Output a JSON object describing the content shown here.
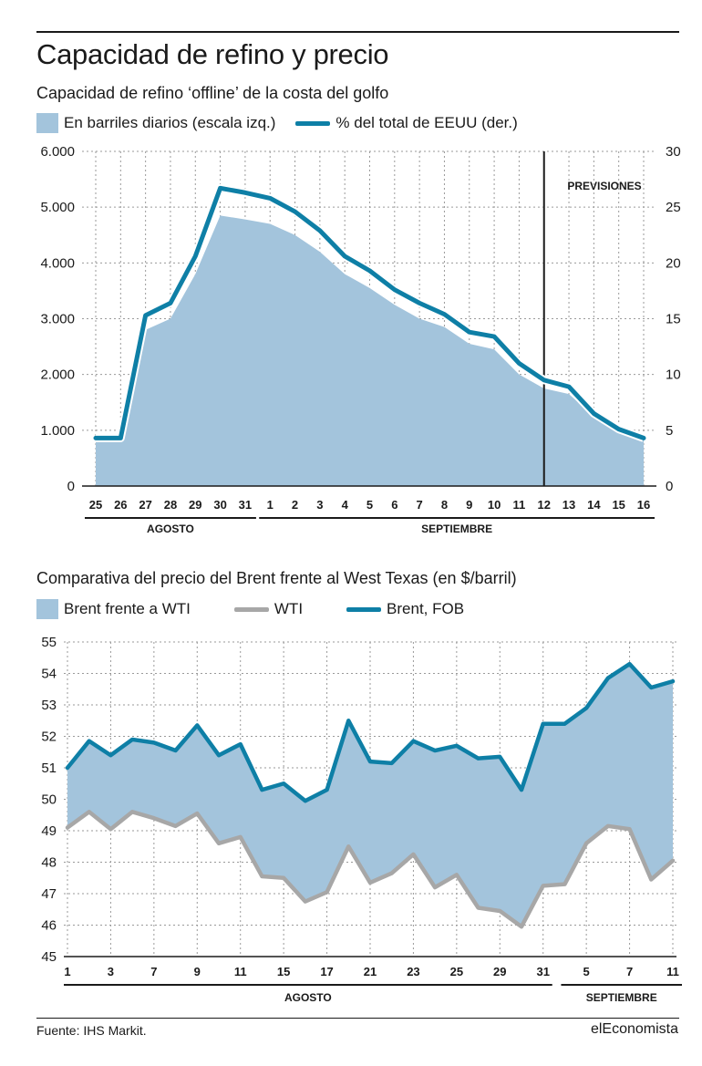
{
  "header": {
    "title": "Capacidad de refino y precio"
  },
  "chart1": {
    "subtitle": "Capacidad de refino ‘offline’ de la costa del golfo",
    "legend": {
      "area": "En barriles diarios (escala izq.)",
      "line": "% del total de EEUU (der.)"
    }
  },
  "chart2": {
    "subtitle": "Comparativa del precio del Brent frente al West Texas (en $/barril)",
    "legend": {
      "area": "Brent frente a WTI",
      "wti": "WTI",
      "brent": "Brent, FOB"
    }
  },
  "footer": {
    "source": "Fuente: IHS Markit.",
    "brand": "elEconomista"
  },
  "colors": {
    "area": "#a3c4dc",
    "brent_line": "#0e7fa6",
    "wti_line": "#a7a7a7",
    "grid": "#9a9a9a",
    "text": "#1a1a1a"
  },
  "chart_data": [
    {
      "type": "area",
      "categories": [
        "25",
        "26",
        "27",
        "28",
        "29",
        "30",
        "31",
        "1",
        "2",
        "3",
        "4",
        "5",
        "6",
        "7",
        "8",
        "9",
        "10",
        "11",
        "12",
        "13",
        "14",
        "15",
        "16"
      ],
      "group_labels": [
        {
          "label": "AGOSTO",
          "from": 0,
          "to": 6
        },
        {
          "label": "SEPTIEMBRE",
          "from": 7,
          "to": 22
        }
      ],
      "series": [
        {
          "name": "En barriles diarios (escala izq.)",
          "axis": "left",
          "chart": "area",
          "values": [
            850,
            850,
            2800,
            3000,
            3800,
            4850,
            4780,
            4700,
            4500,
            4200,
            3800,
            3550,
            3250,
            3000,
            2850,
            2550,
            2450,
            2000,
            1750,
            1650,
            1250,
            1000,
            850
          ]
        },
        {
          "name": "% del total de EEUU (der.)",
          "axis": "right",
          "chart": "line",
          "values": [
            4.3,
            4.3,
            15.3,
            16.4,
            20.6,
            26.7,
            26.3,
            25.8,
            24.6,
            22.9,
            20.6,
            19.3,
            17.6,
            16.4,
            15.4,
            13.8,
            13.4,
            11.0,
            9.5,
            8.9,
            6.5,
            5.1,
            4.3
          ]
        }
      ],
      "yleft": {
        "ylim": [
          0,
          6000
        ],
        "ticks": [
          "0",
          "1.000",
          "2.000",
          "3.000",
          "4.000",
          "5.000",
          "6.000"
        ]
      },
      "yright": {
        "ylim": [
          0,
          30
        ],
        "ticks": [
          "0",
          "5",
          "10",
          "15",
          "20",
          "25",
          "30"
        ]
      },
      "forecast": {
        "label": "PREVISIONES",
        "from_index": 18
      },
      "grid": true
    },
    {
      "type": "line",
      "series": [
        {
          "name": "Brent, FOB",
          "values": [
            51.0,
            51.85,
            51.4,
            51.9,
            51.8,
            51.55,
            52.35,
            51.4,
            51.75,
            50.3,
            50.5,
            49.95,
            50.3,
            52.5,
            51.2,
            51.15,
            51.85,
            51.55,
            51.7,
            51.3,
            51.35,
            50.3,
            52.4,
            52.4,
            52.9,
            53.85,
            54.3,
            53.55,
            53.75
          ]
        },
        {
          "name": "WTI",
          "values": [
            49.1,
            49.6,
            49.05,
            49.6,
            49.4,
            49.15,
            49.55,
            48.6,
            48.8,
            47.55,
            47.5,
            46.75,
            47.05,
            48.5,
            47.35,
            47.65,
            48.25,
            47.2,
            47.6,
            46.55,
            46.45,
            45.95,
            47.25,
            47.3,
            48.6,
            49.15,
            49.05,
            47.45,
            48.05
          ]
        }
      ],
      "x_tick_labels": [
        {
          "label": "1",
          "index": 0
        },
        {
          "label": "3",
          "index": 2
        },
        {
          "label": "7",
          "index": 4
        },
        {
          "label": "9",
          "index": 6
        },
        {
          "label": "11",
          "index": 8
        },
        {
          "label": "15",
          "index": 10
        },
        {
          "label": "17",
          "index": 12
        },
        {
          "label": "21",
          "index": 14
        },
        {
          "label": "23",
          "index": 16
        },
        {
          "label": "25",
          "index": 18
        },
        {
          "label": "29",
          "index": 20
        },
        {
          "label": "31",
          "index": 22
        },
        {
          "label": "5",
          "index": 24
        },
        {
          "label": "7",
          "index": 26
        },
        {
          "label": "11",
          "index": 28
        }
      ],
      "group_labels": [
        {
          "label": "AGOSTO",
          "from": 0,
          "to": 22
        },
        {
          "label": "SEPTIEMBRE",
          "from": 23,
          "to": 28
        }
      ],
      "ylim": [
        45,
        55
      ],
      "yticks": [
        "45",
        "46",
        "47",
        "48",
        "49",
        "50",
        "51",
        "52",
        "53",
        "54",
        "55"
      ],
      "fill_between": "Brent frente a WTI",
      "grid": true
    }
  ]
}
